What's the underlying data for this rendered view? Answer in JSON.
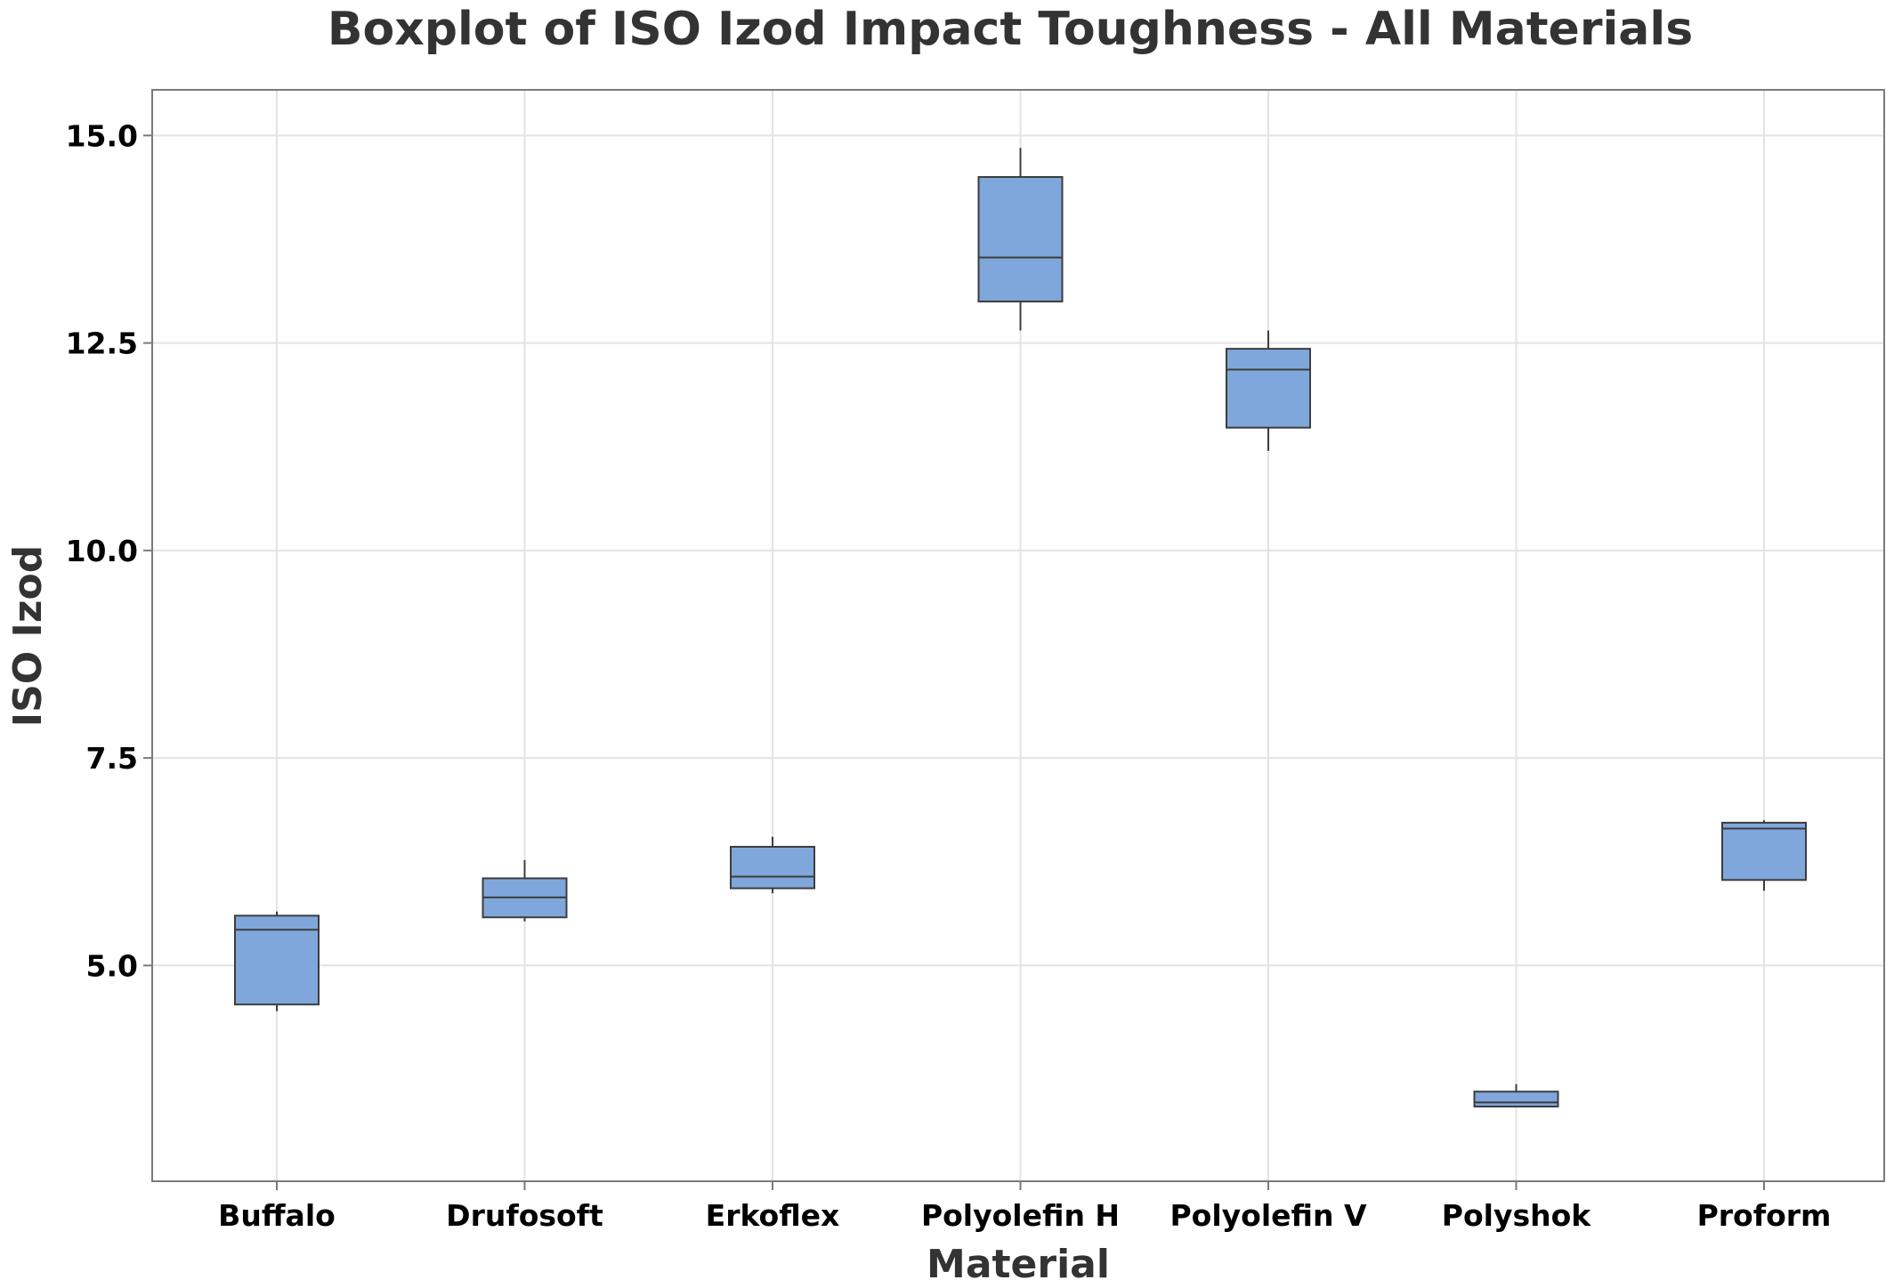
{
  "chart_data": {
    "type": "boxplot",
    "title": "Boxplot of ISO Izod Impact Toughness - All Materials",
    "xlabel": "Material",
    "ylabel": "ISO Izod",
    "ylim": [
      2.4,
      15.55
    ],
    "yticks": [
      5.0,
      7.5,
      10.0,
      12.5,
      15.0
    ],
    "ytick_labels": [
      "5.0",
      "7.5",
      "10.0",
      "12.5",
      "15.0"
    ],
    "grid": true,
    "box_color": "#7fa7db",
    "categories": [
      "Buffalo",
      "Drufosoft",
      "Erkoflex",
      "Polyolefin H",
      "Polyolefin V",
      "Polyshok",
      "Proform"
    ],
    "boxes": [
      {
        "category": "Buffalo",
        "min": 4.45,
        "q1": 4.53,
        "median": 5.43,
        "q3": 5.6,
        "max": 5.65
      },
      {
        "category": "Drufosoft",
        "min": 5.53,
        "q1": 5.58,
        "median": 5.82,
        "q3": 6.05,
        "max": 6.27
      },
      {
        "category": "Erkoflex",
        "min": 5.87,
        "q1": 5.93,
        "median": 6.07,
        "q3": 6.43,
        "max": 6.55
      },
      {
        "category": "Polyolefin H",
        "min": 12.65,
        "q1": 13.0,
        "median": 13.53,
        "q3": 14.5,
        "max": 14.85
      },
      {
        "category": "Polyolefin V",
        "min": 11.2,
        "q1": 11.48,
        "median": 12.18,
        "q3": 12.43,
        "max": 12.65
      },
      {
        "category": "Polyshok",
        "min": 3.3,
        "q1": 3.3,
        "median": 3.35,
        "q3": 3.48,
        "max": 3.57
      },
      {
        "category": "Proform",
        "min": 5.9,
        "q1": 6.03,
        "median": 6.65,
        "q3": 6.72,
        "max": 6.75
      }
    ]
  }
}
